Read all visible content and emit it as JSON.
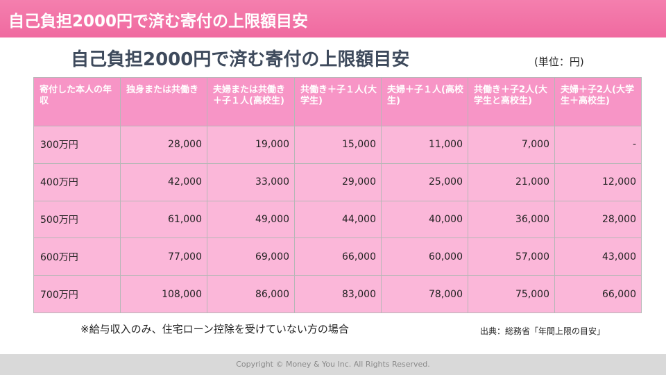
{
  "header": {
    "bar_title": "自己負担2000円で済む寄付の上限額目安"
  },
  "main": {
    "title": "自己負担2000円で済む寄付の上限額目安",
    "unit": "(単位：円)",
    "table": {
      "headers": [
        "寄付した本人の年収",
        "独身または共働き",
        "夫婦または共働き＋子１人(高校生)",
        "共働き＋子１人(大学生)",
        "夫婦＋子１人(高校生)",
        "共働き＋子2人(大学生と高校生)",
        "夫婦＋子2人(大学生＋高校生)"
      ],
      "rows": [
        [
          "300万円",
          "28,000",
          "19,000",
          "15,000",
          "11,000",
          "7,000",
          "-"
        ],
        [
          "400万円",
          "42,000",
          "33,000",
          "29,000",
          "25,000",
          "21,000",
          "12,000"
        ],
        [
          "500万円",
          "61,000",
          "49,000",
          "44,000",
          "40,000",
          "36,000",
          "28,000"
        ],
        [
          "600万円",
          "77,000",
          "69,000",
          "66,000",
          "60,000",
          "57,000",
          "43,000"
        ],
        [
          "700万円",
          "108,000",
          "86,000",
          "83,000",
          "78,000",
          "75,000",
          "66,000"
        ]
      ]
    },
    "footnote": "※給与収入のみ、住宅ローン控除を受けていない方の場合",
    "source": "出典：総務省「年間上限の目安」"
  },
  "footer": {
    "copyright": "Copyright © Money & You Inc. All Rights Reserved."
  },
  "colors": {
    "accent_bar": "#f06aa0",
    "table_header": "#f795c6",
    "table_cell": "#fbb7d9",
    "footer_bar": "#d9d9d9"
  }
}
